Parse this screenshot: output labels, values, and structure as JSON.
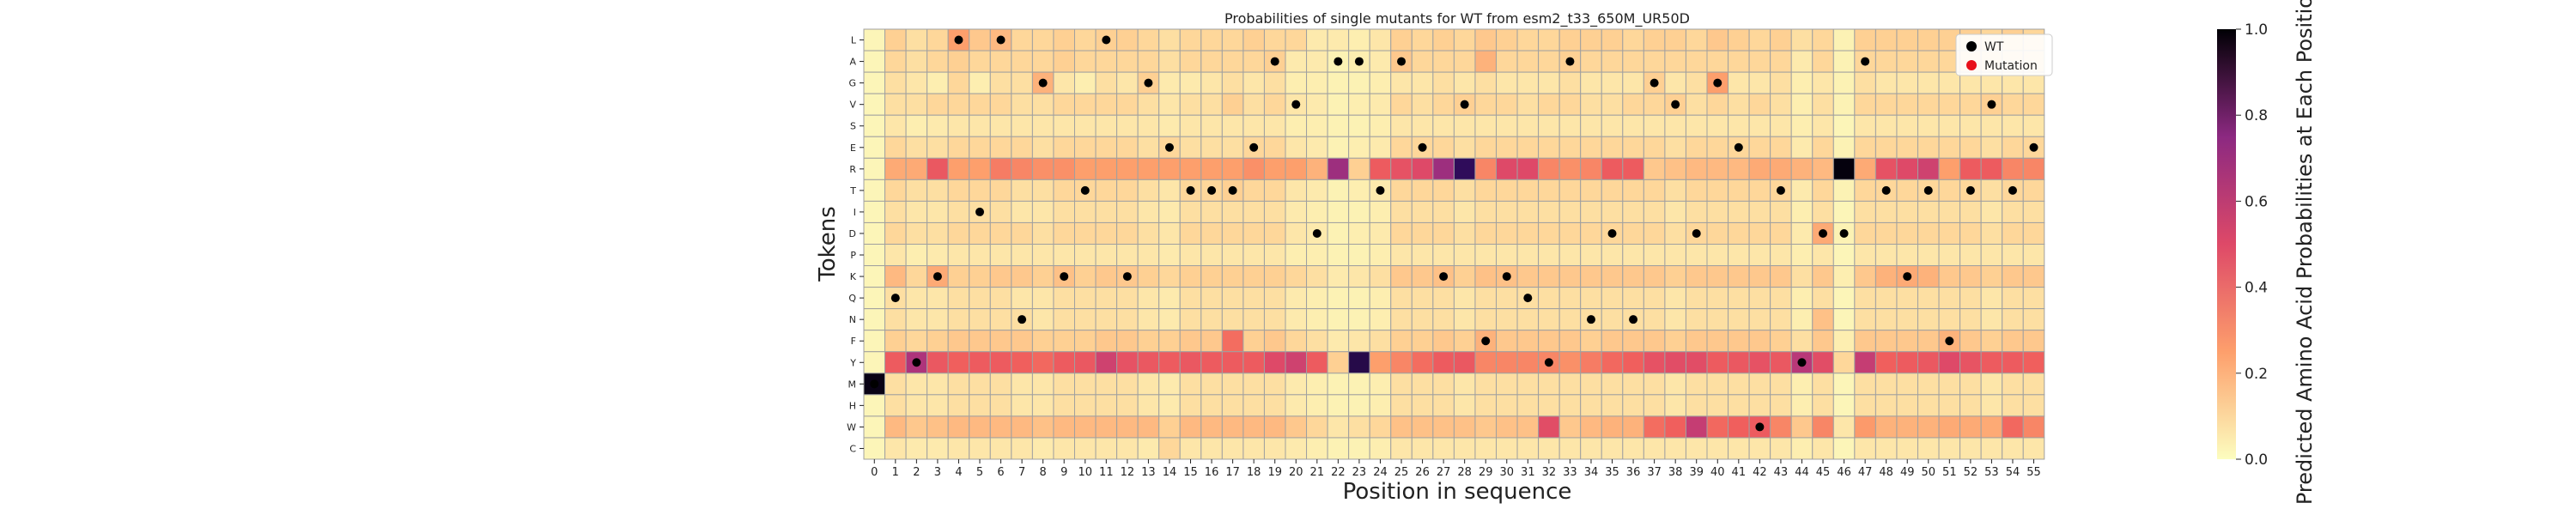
{
  "chart_data": {
    "type": "heatmap",
    "title": "Probabilities of single mutants for WT from esm2_t33_650M_UR50D",
    "xlabel": "Position in sequence",
    "ylabel": "Tokens",
    "colorbar_label": "Predicted Amino Acid Probabilities at Each Position",
    "colorbar_range": [
      0.0,
      1.0
    ],
    "colorbar_ticks": [
      "0.0",
      "0.2",
      "0.4",
      "0.6",
      "0.8",
      "1.0"
    ],
    "colormap": "magma_r",
    "grid": true,
    "legend_position": "top-right",
    "legend": [
      {
        "label": "WT",
        "color": "#000000"
      },
      {
        "label": "Mutation",
        "color": "#e8111b"
      }
    ],
    "tokens": [
      "L",
      "A",
      "G",
      "V",
      "S",
      "E",
      "R",
      "T",
      "I",
      "D",
      "P",
      "K",
      "Q",
      "N",
      "F",
      "Y",
      "M",
      "H",
      "W",
      "C"
    ],
    "positions": [
      0,
      1,
      2,
      3,
      4,
      5,
      6,
      7,
      8,
      9,
      10,
      11,
      12,
      13,
      14,
      15,
      16,
      17,
      18,
      19,
      20,
      21,
      22,
      23,
      24,
      25,
      26,
      27,
      28,
      29,
      30,
      31,
      32,
      33,
      34,
      35,
      36,
      37,
      38,
      39,
      40,
      41,
      42,
      43,
      44,
      45,
      46,
      47,
      48,
      49,
      50,
      51,
      52,
      53,
      54,
      55
    ],
    "wild_type": [
      "M",
      "Q",
      "Y",
      "K",
      "L",
      "I",
      "L",
      "N",
      "G",
      "K",
      "T",
      "L",
      "K",
      "G",
      "E",
      "T",
      "T",
      "T",
      "E",
      "A",
      "V",
      "D",
      "A",
      "A",
      "T",
      "A",
      "E",
      "K",
      "V",
      "F",
      "K",
      "Q",
      "Y",
      "A",
      "N",
      "D",
      "N",
      "G",
      "V",
      "D",
      "G",
      "E",
      "W",
      "T",
      "Y",
      "D",
      "D",
      "A",
      "T",
      "K",
      "T",
      "F",
      "T",
      "V",
      "T",
      "E"
    ],
    "mutations": [],
    "values": [
      [
        0.02,
        0.12,
        0.08,
        0.1,
        0.25,
        0.14,
        0.18,
        0.1,
        0.1,
        0.12,
        0.1,
        0.12,
        0.12,
        0.1,
        0.08,
        0.1,
        0.1,
        0.1,
        0.12,
        0.1,
        0.1,
        0.05,
        0.05,
        0.04,
        0.06,
        0.12,
        0.1,
        0.12,
        0.1,
        0.14,
        0.12,
        0.1,
        0.1,
        0.12,
        0.12,
        0.12,
        0.1,
        0.12,
        0.12,
        0.1,
        0.14,
        0.12,
        0.1,
        0.12,
        0.08,
        0.1,
        0.03,
        0.12,
        0.12,
        0.12,
        0.12,
        0.12,
        0.12,
        0.1,
        0.12,
        0.1
      ],
      [
        0.02,
        0.1,
        0.08,
        0.1,
        0.12,
        0.1,
        0.1,
        0.1,
        0.1,
        0.12,
        0.1,
        0.1,
        0.1,
        0.1,
        0.08,
        0.1,
        0.1,
        0.1,
        0.1,
        0.12,
        0.05,
        0.05,
        0.03,
        0.04,
        0.05,
        0.14,
        0.1,
        0.1,
        0.1,
        0.2,
        0.1,
        0.1,
        0.1,
        0.12,
        0.1,
        0.1,
        0.1,
        0.1,
        0.1,
        0.1,
        0.1,
        0.1,
        0.1,
        0.1,
        0.05,
        0.1,
        0.03,
        0.1,
        0.1,
        0.1,
        0.1,
        0.1,
        0.1,
        0.1,
        0.1,
        0.1
      ],
      [
        0.02,
        0.08,
        0.06,
        0.04,
        0.1,
        0.04,
        0.08,
        0.08,
        0.2,
        0.06,
        0.04,
        0.08,
        0.06,
        0.12,
        0.05,
        0.05,
        0.06,
        0.08,
        0.06,
        0.08,
        0.04,
        0.04,
        0.03,
        0.03,
        0.04,
        0.06,
        0.06,
        0.08,
        0.06,
        0.08,
        0.06,
        0.06,
        0.06,
        0.08,
        0.06,
        0.06,
        0.06,
        0.12,
        0.06,
        0.08,
        0.25,
        0.06,
        0.06,
        0.08,
        0.04,
        0.06,
        0.03,
        0.08,
        0.06,
        0.06,
        0.06,
        0.06,
        0.06,
        0.06,
        0.06,
        0.06
      ],
      [
        0.02,
        0.08,
        0.08,
        0.1,
        0.1,
        0.1,
        0.1,
        0.08,
        0.08,
        0.1,
        0.1,
        0.1,
        0.1,
        0.08,
        0.06,
        0.08,
        0.08,
        0.12,
        0.08,
        0.1,
        0.06,
        0.05,
        0.03,
        0.04,
        0.05,
        0.1,
        0.08,
        0.1,
        0.12,
        0.1,
        0.1,
        0.08,
        0.1,
        0.1,
        0.08,
        0.08,
        0.1,
        0.1,
        0.12,
        0.08,
        0.1,
        0.08,
        0.1,
        0.08,
        0.04,
        0.08,
        0.03,
        0.1,
        0.1,
        0.1,
        0.1,
        0.1,
        0.1,
        0.12,
        0.1,
        0.1
      ],
      [
        0.02,
        0.06,
        0.04,
        0.05,
        0.06,
        0.06,
        0.06,
        0.06,
        0.06,
        0.06,
        0.06,
        0.06,
        0.06,
        0.06,
        0.05,
        0.06,
        0.06,
        0.06,
        0.06,
        0.06,
        0.04,
        0.04,
        0.03,
        0.03,
        0.04,
        0.06,
        0.06,
        0.06,
        0.06,
        0.06,
        0.06,
        0.06,
        0.06,
        0.06,
        0.06,
        0.06,
        0.06,
        0.06,
        0.06,
        0.06,
        0.06,
        0.06,
        0.06,
        0.06,
        0.04,
        0.06,
        0.02,
        0.06,
        0.06,
        0.06,
        0.06,
        0.06,
        0.06,
        0.06,
        0.06,
        0.06
      ],
      [
        0.02,
        0.1,
        0.08,
        0.08,
        0.1,
        0.1,
        0.1,
        0.1,
        0.08,
        0.1,
        0.1,
        0.1,
        0.1,
        0.08,
        0.1,
        0.08,
        0.08,
        0.08,
        0.1,
        0.1,
        0.06,
        0.05,
        0.03,
        0.04,
        0.05,
        0.1,
        0.1,
        0.1,
        0.08,
        0.1,
        0.1,
        0.1,
        0.1,
        0.1,
        0.1,
        0.1,
        0.1,
        0.1,
        0.08,
        0.1,
        0.1,
        0.1,
        0.1,
        0.1,
        0.05,
        0.1,
        0.03,
        0.1,
        0.1,
        0.1,
        0.1,
        0.1,
        0.1,
        0.08,
        0.1,
        0.1
      ],
      [
        0.02,
        0.22,
        0.22,
        0.42,
        0.25,
        0.25,
        0.32,
        0.3,
        0.28,
        0.28,
        0.25,
        0.25,
        0.25,
        0.25,
        0.25,
        0.25,
        0.25,
        0.25,
        0.28,
        0.25,
        0.25,
        0.2,
        0.7,
        0.12,
        0.4,
        0.45,
        0.5,
        0.7,
        0.9,
        0.3,
        0.5,
        0.5,
        0.3,
        0.28,
        0.3,
        0.4,
        0.4,
        0.14,
        0.16,
        0.18,
        0.18,
        0.18,
        0.22,
        0.22,
        0.2,
        0.18,
        0.99,
        0.22,
        0.45,
        0.5,
        0.55,
        0.25,
        0.4,
        0.4,
        0.3,
        0.3
      ],
      [
        0.02,
        0.1,
        0.08,
        0.08,
        0.1,
        0.1,
        0.1,
        0.08,
        0.08,
        0.1,
        0.1,
        0.1,
        0.1,
        0.08,
        0.06,
        0.1,
        0.1,
        0.12,
        0.1,
        0.1,
        0.06,
        0.05,
        0.03,
        0.04,
        0.05,
        0.1,
        0.1,
        0.1,
        0.08,
        0.1,
        0.1,
        0.1,
        0.1,
        0.1,
        0.1,
        0.1,
        0.1,
        0.1,
        0.08,
        0.1,
        0.1,
        0.1,
        0.1,
        0.1,
        0.05,
        0.1,
        0.03,
        0.1,
        0.1,
        0.1,
        0.1,
        0.1,
        0.1,
        0.08,
        0.1,
        0.1
      ],
      [
        0.02,
        0.08,
        0.06,
        0.06,
        0.08,
        0.08,
        0.08,
        0.06,
        0.06,
        0.08,
        0.08,
        0.08,
        0.08,
        0.06,
        0.05,
        0.08,
        0.08,
        0.08,
        0.08,
        0.08,
        0.05,
        0.04,
        0.03,
        0.03,
        0.04,
        0.08,
        0.08,
        0.08,
        0.06,
        0.08,
        0.08,
        0.08,
        0.08,
        0.08,
        0.08,
        0.08,
        0.08,
        0.08,
        0.06,
        0.08,
        0.08,
        0.08,
        0.08,
        0.08,
        0.04,
        0.08,
        0.02,
        0.08,
        0.08,
        0.08,
        0.08,
        0.08,
        0.08,
        0.06,
        0.08,
        0.08
      ],
      [
        0.02,
        0.1,
        0.08,
        0.08,
        0.1,
        0.1,
        0.1,
        0.1,
        0.08,
        0.1,
        0.1,
        0.1,
        0.1,
        0.08,
        0.06,
        0.1,
        0.1,
        0.1,
        0.1,
        0.1,
        0.06,
        0.05,
        0.03,
        0.04,
        0.05,
        0.1,
        0.1,
        0.1,
        0.08,
        0.1,
        0.1,
        0.1,
        0.1,
        0.1,
        0.1,
        0.1,
        0.1,
        0.1,
        0.08,
        0.1,
        0.1,
        0.1,
        0.1,
        0.1,
        0.05,
        0.22,
        0.03,
        0.1,
        0.1,
        0.1,
        0.1,
        0.1,
        0.1,
        0.08,
        0.1,
        0.1
      ],
      [
        0.02,
        0.06,
        0.04,
        0.05,
        0.06,
        0.06,
        0.06,
        0.06,
        0.06,
        0.06,
        0.06,
        0.06,
        0.06,
        0.06,
        0.05,
        0.06,
        0.06,
        0.06,
        0.06,
        0.06,
        0.04,
        0.04,
        0.03,
        0.03,
        0.04,
        0.06,
        0.06,
        0.06,
        0.06,
        0.06,
        0.06,
        0.06,
        0.06,
        0.06,
        0.06,
        0.06,
        0.06,
        0.06,
        0.06,
        0.06,
        0.06,
        0.06,
        0.06,
        0.06,
        0.04,
        0.06,
        0.02,
        0.06,
        0.06,
        0.06,
        0.06,
        0.06,
        0.06,
        0.06,
        0.06,
        0.06
      ],
      [
        0.02,
        0.18,
        0.1,
        0.22,
        0.12,
        0.12,
        0.14,
        0.14,
        0.12,
        0.16,
        0.12,
        0.14,
        0.14,
        0.12,
        0.1,
        0.12,
        0.12,
        0.12,
        0.12,
        0.12,
        0.1,
        0.08,
        0.05,
        0.06,
        0.08,
        0.14,
        0.14,
        0.16,
        0.12,
        0.16,
        0.16,
        0.14,
        0.14,
        0.14,
        0.14,
        0.14,
        0.14,
        0.14,
        0.12,
        0.14,
        0.14,
        0.14,
        0.14,
        0.14,
        0.08,
        0.14,
        0.04,
        0.14,
        0.2,
        0.22,
        0.2,
        0.14,
        0.14,
        0.12,
        0.14,
        0.14
      ],
      [
        0.02,
        0.08,
        0.06,
        0.06,
        0.08,
        0.08,
        0.08,
        0.06,
        0.06,
        0.08,
        0.08,
        0.08,
        0.08,
        0.06,
        0.05,
        0.08,
        0.08,
        0.08,
        0.08,
        0.08,
        0.05,
        0.04,
        0.03,
        0.03,
        0.04,
        0.08,
        0.08,
        0.08,
        0.06,
        0.08,
        0.08,
        0.08,
        0.08,
        0.08,
        0.08,
        0.08,
        0.08,
        0.08,
        0.06,
        0.08,
        0.08,
        0.08,
        0.08,
        0.08,
        0.04,
        0.08,
        0.02,
        0.08,
        0.08,
        0.08,
        0.08,
        0.08,
        0.08,
        0.06,
        0.08,
        0.08
      ],
      [
        0.02,
        0.08,
        0.06,
        0.06,
        0.08,
        0.08,
        0.08,
        0.08,
        0.06,
        0.08,
        0.08,
        0.08,
        0.08,
        0.06,
        0.05,
        0.08,
        0.08,
        0.08,
        0.08,
        0.08,
        0.05,
        0.04,
        0.03,
        0.03,
        0.04,
        0.08,
        0.08,
        0.08,
        0.06,
        0.08,
        0.08,
        0.08,
        0.08,
        0.08,
        0.08,
        0.08,
        0.08,
        0.08,
        0.06,
        0.08,
        0.08,
        0.08,
        0.08,
        0.08,
        0.04,
        0.16,
        0.02,
        0.08,
        0.08,
        0.08,
        0.08,
        0.08,
        0.08,
        0.06,
        0.08,
        0.08
      ],
      [
        0.02,
        0.12,
        0.1,
        0.12,
        0.14,
        0.14,
        0.14,
        0.14,
        0.12,
        0.12,
        0.12,
        0.14,
        0.14,
        0.12,
        0.12,
        0.14,
        0.14,
        0.35,
        0.12,
        0.14,
        0.1,
        0.08,
        0.05,
        0.06,
        0.08,
        0.12,
        0.12,
        0.14,
        0.12,
        0.2,
        0.14,
        0.14,
        0.14,
        0.14,
        0.12,
        0.14,
        0.14,
        0.14,
        0.12,
        0.14,
        0.14,
        0.14,
        0.14,
        0.12,
        0.08,
        0.14,
        0.04,
        0.14,
        0.14,
        0.14,
        0.14,
        0.2,
        0.14,
        0.12,
        0.14,
        0.14
      ],
      [
        0.02,
        0.4,
        0.65,
        0.42,
        0.38,
        0.4,
        0.4,
        0.38,
        0.36,
        0.4,
        0.42,
        0.55,
        0.45,
        0.42,
        0.4,
        0.42,
        0.4,
        0.4,
        0.4,
        0.5,
        0.55,
        0.4,
        0.12,
        0.92,
        0.25,
        0.3,
        0.35,
        0.4,
        0.42,
        0.3,
        0.3,
        0.3,
        0.3,
        0.28,
        0.32,
        0.36,
        0.38,
        0.45,
        0.48,
        0.48,
        0.4,
        0.42,
        0.45,
        0.42,
        0.62,
        0.48,
        0.1,
        0.58,
        0.38,
        0.4,
        0.42,
        0.5,
        0.44,
        0.4,
        0.4,
        0.38
      ],
      [
        0.98,
        0.08,
        0.06,
        0.06,
        0.08,
        0.08,
        0.08,
        0.06,
        0.06,
        0.08,
        0.08,
        0.08,
        0.08,
        0.06,
        0.05,
        0.08,
        0.08,
        0.08,
        0.08,
        0.08,
        0.05,
        0.04,
        0.03,
        0.03,
        0.04,
        0.08,
        0.08,
        0.08,
        0.06,
        0.08,
        0.08,
        0.08,
        0.08,
        0.08,
        0.08,
        0.08,
        0.08,
        0.08,
        0.06,
        0.08,
        0.08,
        0.08,
        0.08,
        0.08,
        0.04,
        0.08,
        0.02,
        0.08,
        0.08,
        0.08,
        0.08,
        0.08,
        0.08,
        0.06,
        0.08,
        0.08
      ],
      [
        0.02,
        0.08,
        0.06,
        0.06,
        0.08,
        0.08,
        0.08,
        0.06,
        0.06,
        0.08,
        0.08,
        0.08,
        0.08,
        0.06,
        0.05,
        0.08,
        0.08,
        0.08,
        0.08,
        0.08,
        0.05,
        0.04,
        0.03,
        0.03,
        0.04,
        0.08,
        0.08,
        0.08,
        0.06,
        0.08,
        0.08,
        0.08,
        0.08,
        0.08,
        0.08,
        0.08,
        0.08,
        0.08,
        0.06,
        0.08,
        0.08,
        0.08,
        0.08,
        0.08,
        0.04,
        0.08,
        0.02,
        0.08,
        0.08,
        0.08,
        0.08,
        0.08,
        0.08,
        0.06,
        0.08,
        0.08
      ],
      [
        0.02,
        0.18,
        0.14,
        0.16,
        0.18,
        0.18,
        0.18,
        0.18,
        0.16,
        0.18,
        0.18,
        0.18,
        0.18,
        0.18,
        0.12,
        0.18,
        0.18,
        0.18,
        0.18,
        0.18,
        0.14,
        0.1,
        0.06,
        0.08,
        0.1,
        0.16,
        0.16,
        0.16,
        0.16,
        0.14,
        0.16,
        0.16,
        0.48,
        0.14,
        0.18,
        0.2,
        0.2,
        0.35,
        0.38,
        0.58,
        0.36,
        0.38,
        0.4,
        0.3,
        0.14,
        0.3,
        0.06,
        0.26,
        0.2,
        0.2,
        0.2,
        0.22,
        0.22,
        0.22,
        0.36,
        0.3
      ],
      [
        0.02,
        0.06,
        0.05,
        0.05,
        0.06,
        0.06,
        0.06,
        0.06,
        0.05,
        0.06,
        0.06,
        0.06,
        0.06,
        0.05,
        0.1,
        0.06,
        0.06,
        0.06,
        0.06,
        0.06,
        0.05,
        0.04,
        0.03,
        0.03,
        0.04,
        0.06,
        0.06,
        0.06,
        0.06,
        0.06,
        0.06,
        0.06,
        0.06,
        0.06,
        0.06,
        0.06,
        0.06,
        0.06,
        0.06,
        0.06,
        0.06,
        0.06,
        0.06,
        0.06,
        0.04,
        0.06,
        0.02,
        0.06,
        0.06,
        0.06,
        0.06,
        0.06,
        0.06,
        0.06,
        0.06,
        0.06
      ]
    ]
  }
}
